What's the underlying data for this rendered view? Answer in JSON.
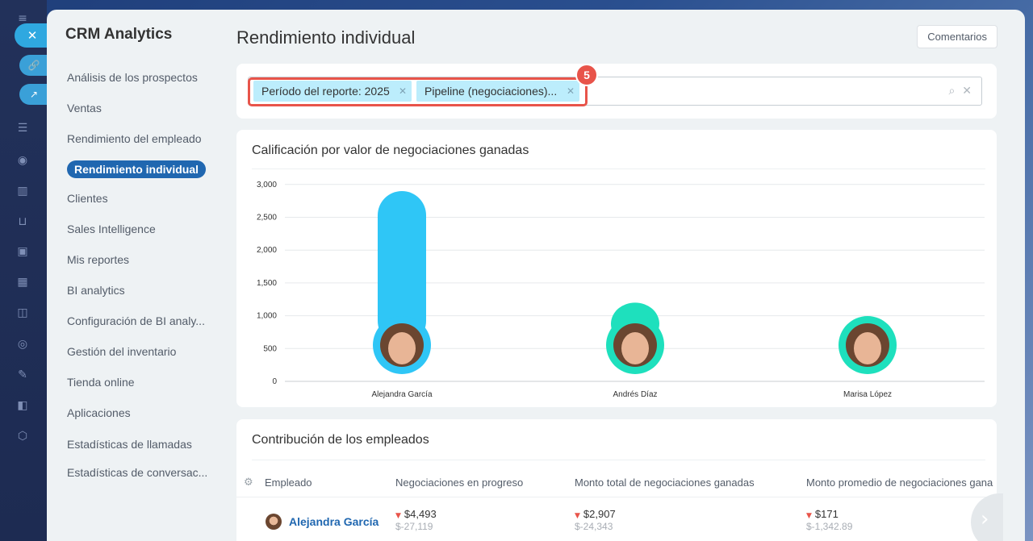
{
  "sidebar": {
    "title": "CRM Analytics",
    "items": [
      {
        "label": "Análisis de los prospectos"
      },
      {
        "label": "Ventas"
      },
      {
        "label": "Rendimiento del empleado"
      },
      {
        "label": "Rendimiento individual",
        "active": true
      },
      {
        "label": "Clientes"
      },
      {
        "label": "Sales Intelligence"
      },
      {
        "label": "Mis reportes"
      },
      {
        "label": "BI analytics"
      },
      {
        "label": "Configuración de BI analy..."
      },
      {
        "label": "Gestión del inventario"
      },
      {
        "label": "Tienda online"
      },
      {
        "label": "Aplicaciones"
      },
      {
        "label": "Estadísticas de llamadas"
      },
      {
        "label": "Estadísticas de conversac..."
      }
    ]
  },
  "header": {
    "title": "Rendimiento individual",
    "comments_label": "Comentarios"
  },
  "filter": {
    "tags": [
      {
        "label": "Período del reporte: 2025"
      },
      {
        "label": "Pipeline (negociaciones)..."
      }
    ],
    "badge": "5"
  },
  "chart": {
    "title": "Calificación por valor de negociaciones ganadas"
  },
  "chart_data": {
    "type": "bar",
    "title": "Calificación por valor de negociaciones ganadas",
    "categories": [
      "Alejandra García",
      "Andrés Díaz",
      "Marisa López"
    ],
    "values": [
      2900,
      1200,
      650
    ],
    "ylim": [
      0,
      3000
    ],
    "yticks": [
      "0",
      "500",
      "1,000",
      "1,500",
      "2,000",
      "2,500",
      "3,000"
    ],
    "bar_colors": [
      "#2fc6f6",
      "#1ee0bd",
      "#1ee0bd"
    ],
    "grid": true
  },
  "table": {
    "title": "Contribución de los empleados",
    "columns": [
      "Empleado",
      "Negociaciones en progreso",
      "Monto total de negociaciones ganadas",
      "Monto promedio de negociaciones gana"
    ],
    "rows": [
      {
        "employee": "Alejandra García",
        "in_progress": "$4,493",
        "in_progress_delta": "$-27,119",
        "total_won": "$2,907",
        "total_won_delta": "$-24,343",
        "avg_won": "$171",
        "avg_won_delta": "$-1,342.89"
      }
    ]
  },
  "colors": {
    "accent": "#2067b0",
    "highlight": "#e8544a",
    "tag_bg": "#bcedfc"
  }
}
